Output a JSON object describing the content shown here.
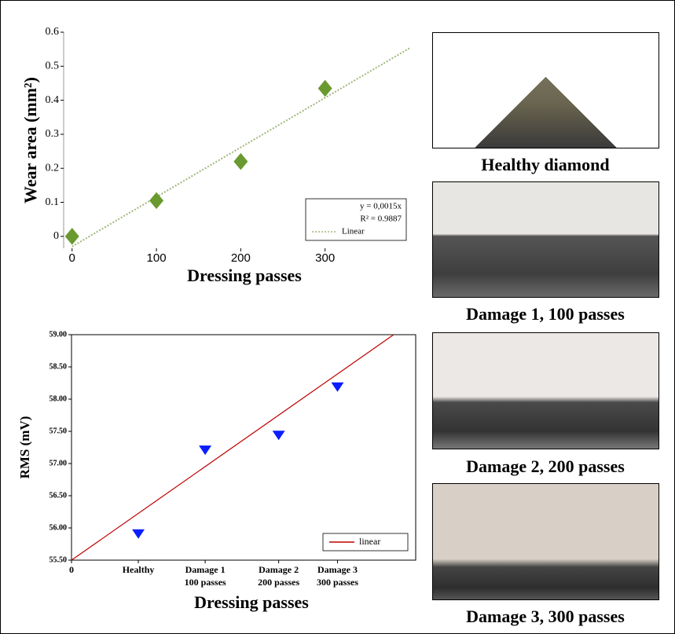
{
  "chart_data": [
    {
      "type": "scatter",
      "y_label": "Wear area (mm²)",
      "x_label": "Dressing passes",
      "x": [
        0,
        100,
        200,
        300
      ],
      "values": [
        0,
        0.105,
        0.22,
        0.435
      ],
      "color": "#6a9a2f",
      "marker": "diamond",
      "xlim": [
        -10,
        400
      ],
      "ylim": [
        -0.035,
        0.6
      ],
      "xticks": [
        0,
        100,
        200,
        300
      ],
      "yticks": [
        0,
        0.1,
        0.2,
        0.3,
        0.4,
        0.5,
        0.6
      ],
      "frame": false,
      "trendline": {
        "name": "Linear",
        "equation": "y = 0,0015x",
        "r2_label": "R² = 0.9887",
        "color": "#9fb87a",
        "dash": "2,2",
        "x": [
          0,
          400
        ],
        "y": [
          -0.03,
          0.553
        ]
      }
    },
    {
      "type": "scatter",
      "y_label": "RMS (mV)",
      "x_label": "Dressing passes",
      "x": [
        1,
        2,
        3.1,
        3.98
      ],
      "values": [
        55.92,
        57.22,
        57.45,
        58.2
      ],
      "color": "#0a1eff",
      "marker": "triangle-down",
      "xlim": [
        0,
        5.15
      ],
      "ylim": [
        55.5,
        59.0
      ],
      "xticks": [
        {
          "value": 0,
          "label": "0"
        },
        {
          "value": 1,
          "label": "Healthy"
        },
        {
          "value": 2,
          "label": "Damage 1\n100 passes"
        },
        {
          "value": 3.1,
          "label": "Damage 2\n200 passes"
        },
        {
          "value": 3.98,
          "label": "Damage 3\n300 passes"
        }
      ],
      "yticks": [
        {
          "value": 55.5,
          "label": "55.50"
        },
        {
          "value": 56.0,
          "label": "56.00"
        },
        {
          "value": 56.5,
          "label": "56.50"
        },
        {
          "value": 57.0,
          "label": "57.00"
        },
        {
          "value": 57.5,
          "label": "57.50"
        },
        {
          "value": 58.0,
          "label": "58.00"
        },
        {
          "value": 58.5,
          "label": "58.50"
        },
        {
          "value": 59.0,
          "label": "59.00"
        }
      ],
      "frame": true,
      "trendline": {
        "name": "linear",
        "color": "#c00000",
        "dash": "",
        "x": [
          0,
          4.82
        ],
        "y": [
          55.5,
          59.0
        ]
      }
    }
  ],
  "photos": [
    {
      "caption": "Healthy diamond"
    },
    {
      "caption": "Damage 1, 100 passes"
    },
    {
      "caption": "Damage 2, 200 passes"
    },
    {
      "caption": "Damage 3, 300 passes"
    }
  ]
}
